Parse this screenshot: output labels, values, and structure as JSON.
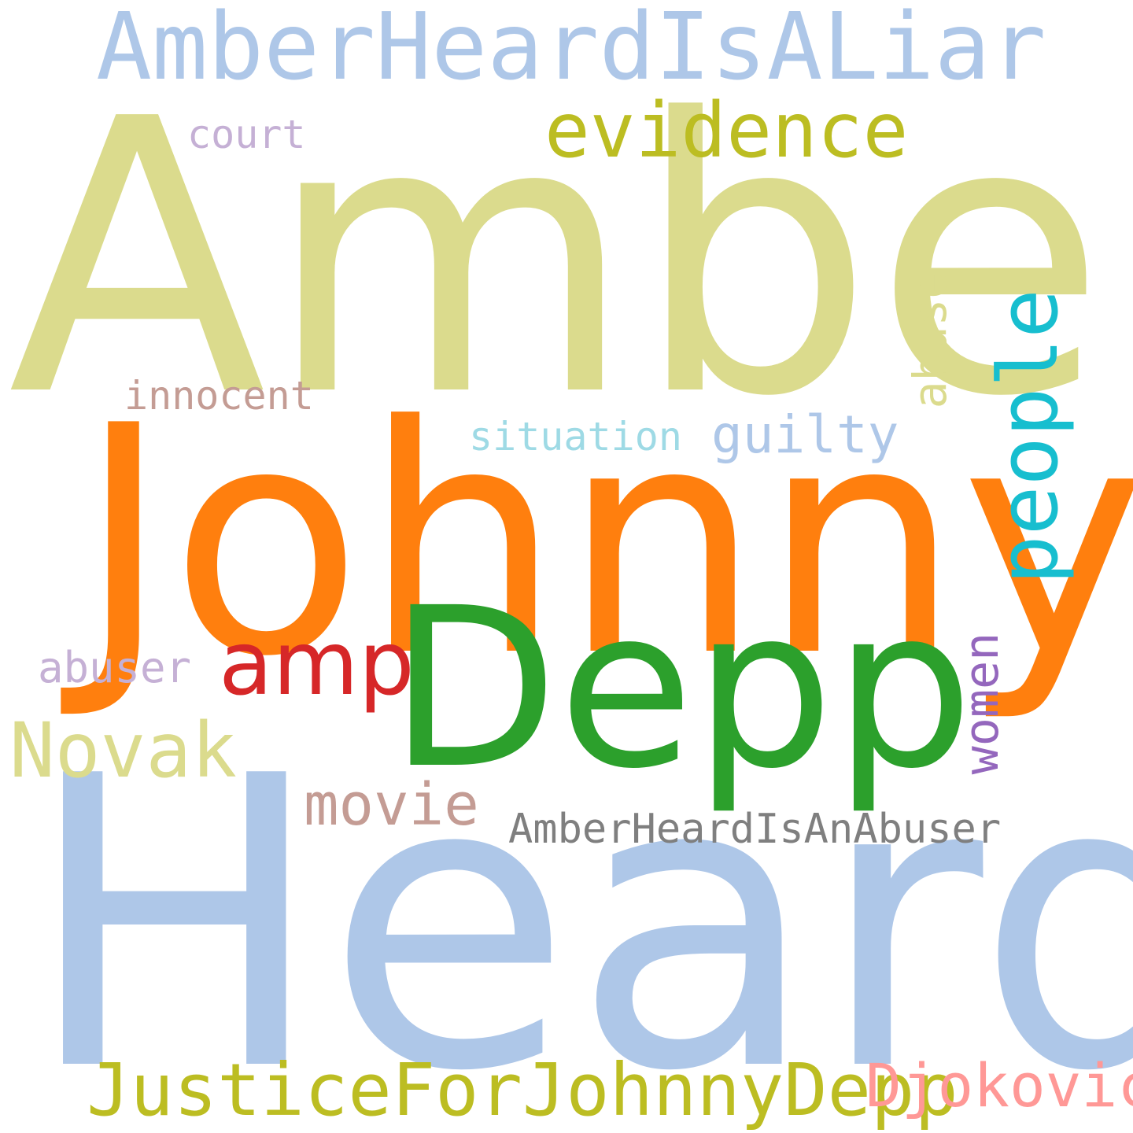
{
  "words": {
    "amberheardisaliar": {
      "text": "AmberHeardIsALiar",
      "color": "#aec7e8"
    },
    "amber": {
      "text": "Amber",
      "color": "#dbdb8d"
    },
    "evidence": {
      "text": "evidence",
      "color": "#bcbd22"
    },
    "court": {
      "text": "court",
      "color": "#c5b0d5"
    },
    "abuse": {
      "text": "abuse",
      "color": "#dbdb8d"
    },
    "people": {
      "text": "people",
      "color": "#17becf"
    },
    "innocent": {
      "text": "innocent",
      "color": "#c49c94"
    },
    "situation": {
      "text": "situation",
      "color": "#9edae5"
    },
    "guilty": {
      "text": "guilty",
      "color": "#aec7e8"
    },
    "johnny": {
      "text": "Johnny",
      "color": "#ff7f0e"
    },
    "abuser": {
      "text": "abuser",
      "color": "#c5b0d5"
    },
    "amp": {
      "text": "amp",
      "color": "#d62728"
    },
    "depp": {
      "text": "Depp",
      "color": "#2ca02c"
    },
    "women": {
      "text": "women",
      "color": "#9467bd"
    },
    "novak": {
      "text": "Novak",
      "color": "#dbdb8d"
    },
    "movie": {
      "text": "movie",
      "color": "#c49c94"
    },
    "amberheardisanabuser": {
      "text": "AmberHeardIsAnAbuser",
      "color": "#7f7f7f"
    },
    "heard": {
      "text": "Heard",
      "color": "#aec7e8"
    },
    "justiceforjohnnydepp": {
      "text": "JusticeForJohnnyDepp",
      "color": "#bcbd22"
    },
    "djokovic": {
      "text": "Djokovic",
      "color": "#ff9896"
    }
  }
}
